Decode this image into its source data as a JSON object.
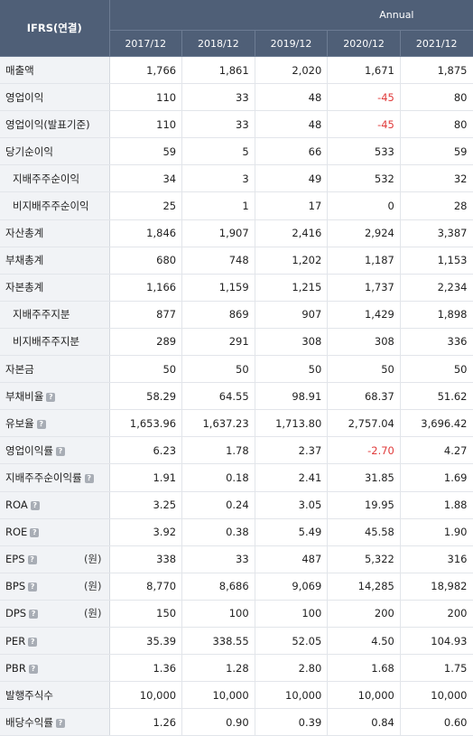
{
  "header": {
    "corner": "IFRS(연결)",
    "period_type": "Annual",
    "years": [
      "2017/12",
      "2018/12",
      "2019/12",
      "2020/12",
      "2021/12"
    ]
  },
  "rows": [
    {
      "label": "매출액",
      "values": [
        "1,766",
        "1,861",
        "2,020",
        "1,671",
        "1,875"
      ]
    },
    {
      "label": "영업이익",
      "values": [
        "110",
        "33",
        "48",
        "-45",
        "80"
      ]
    },
    {
      "label": "영업이익(발표기준)",
      "values": [
        "110",
        "33",
        "48",
        "-45",
        "80"
      ]
    },
    {
      "label": "당기순이익",
      "values": [
        "59",
        "5",
        "66",
        "533",
        "59"
      ]
    },
    {
      "label": "지배주주순이익",
      "sub": true,
      "values": [
        "34",
        "3",
        "49",
        "532",
        "32"
      ]
    },
    {
      "label": "비지배주주순이익",
      "sub": true,
      "values": [
        "25",
        "1",
        "17",
        "0",
        "28"
      ]
    },
    {
      "label": "자산총계",
      "values": [
        "1,846",
        "1,907",
        "2,416",
        "2,924",
        "3,387"
      ]
    },
    {
      "label": "부채총계",
      "values": [
        "680",
        "748",
        "1,202",
        "1,187",
        "1,153"
      ]
    },
    {
      "label": "자본총계",
      "values": [
        "1,166",
        "1,159",
        "1,215",
        "1,737",
        "2,234"
      ]
    },
    {
      "label": "지배주주지분",
      "sub": true,
      "values": [
        "877",
        "869",
        "907",
        "1,429",
        "1,898"
      ]
    },
    {
      "label": "비지배주주지분",
      "sub": true,
      "values": [
        "289",
        "291",
        "308",
        "308",
        "336"
      ]
    },
    {
      "label": "자본금",
      "values": [
        "50",
        "50",
        "50",
        "50",
        "50"
      ]
    },
    {
      "label": "부채비율",
      "help": "?",
      "values": [
        "58.29",
        "64.55",
        "98.91",
        "68.37",
        "51.62"
      ]
    },
    {
      "label": "유보율",
      "help": "?",
      "values": [
        "1,653.96",
        "1,637.23",
        "1,713.80",
        "2,757.04",
        "3,696.42"
      ]
    },
    {
      "label": "영업이익률",
      "help": "?",
      "values": [
        "6.23",
        "1.78",
        "2.37",
        "-2.70",
        "4.27"
      ]
    },
    {
      "label": "지배주주순이익률",
      "help": "?",
      "values": [
        "1.91",
        "0.18",
        "2.41",
        "31.85",
        "1.69"
      ]
    },
    {
      "label": "ROA",
      "help": "?",
      "values": [
        "3.25",
        "0.24",
        "3.05",
        "19.95",
        "1.88"
      ]
    },
    {
      "label": "ROE",
      "help": "?",
      "values": [
        "3.92",
        "0.38",
        "5.49",
        "45.58",
        "1.90"
      ]
    },
    {
      "label": "EPS",
      "help": "?",
      "unit": "(원)",
      "values": [
        "338",
        "33",
        "487",
        "5,322",
        "316"
      ]
    },
    {
      "label": "BPS",
      "help": "?",
      "unit": "(원)",
      "values": [
        "8,770",
        "8,686",
        "9,069",
        "14,285",
        "18,982"
      ]
    },
    {
      "label": "DPS",
      "help": "?",
      "unit": "(원)",
      "values": [
        "150",
        "100",
        "100",
        "200",
        "200"
      ]
    },
    {
      "label": "PER",
      "help": "?",
      "values": [
        "35.39",
        "338.55",
        "52.05",
        "4.50",
        "104.93"
      ]
    },
    {
      "label": "PBR",
      "help": "?",
      "values": [
        "1.36",
        "1.28",
        "2.80",
        "1.68",
        "1.75"
      ]
    },
    {
      "label": "발행주식수",
      "values": [
        "10,000",
        "10,000",
        "10,000",
        "10,000",
        "10,000"
      ]
    },
    {
      "label": "배당수익률",
      "help": "?",
      "values": [
        "1.26",
        "0.90",
        "0.39",
        "0.84",
        "0.60"
      ]
    }
  ],
  "colors": {
    "header_bg": "#4f5f77",
    "label_bg": "#f1f3f6",
    "negative": "#e03b3b"
  }
}
